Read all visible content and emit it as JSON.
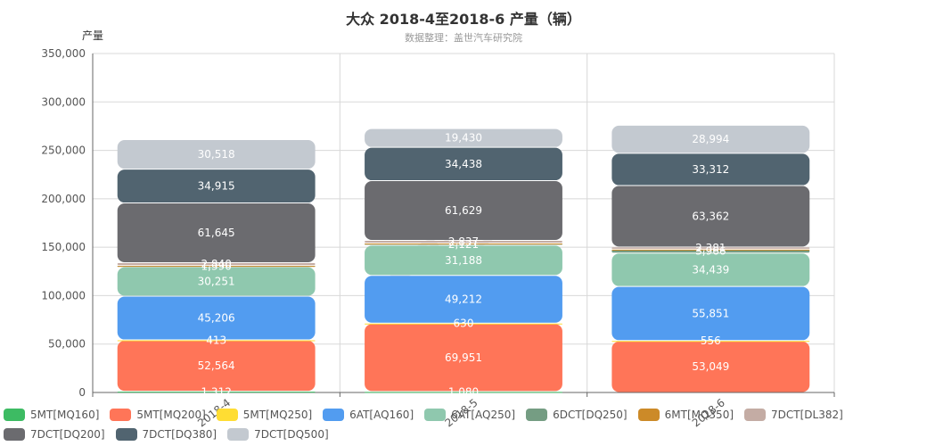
{
  "chart_data": {
    "type": "bar",
    "stacked": true,
    "title": "大众 2018-4至2018-6 产量（辆）",
    "subtitle": "数据整理：盖世汽车研究院",
    "ylabel": "产量",
    "ylim": [
      0,
      350000
    ],
    "yticks": [
      "0",
      "50,000",
      "100,000",
      "150,000",
      "200,000",
      "250,000",
      "300,000",
      "350,000"
    ],
    "categories": [
      "2018-4",
      "2018-5",
      "2018-6"
    ],
    "legend_position": "bottom",
    "series": [
      {
        "name": "5MT[MQ160]",
        "color": "#3dbb63",
        "values": [
          1312,
          1080,
          0
        ],
        "labels": [
          "1,312",
          "1,080",
          ""
        ]
      },
      {
        "name": "5MT[MQ200]",
        "color": "#ff7558",
        "values": [
          52564,
          69951,
          53049
        ],
        "labels": [
          "52,564",
          "69,951",
          "53,049"
        ]
      },
      {
        "name": "5MT[MQ250]",
        "color": "#ffdd33",
        "values": [
          413,
          630,
          556
        ],
        "labels": [
          "413",
          "630",
          "556"
        ]
      },
      {
        "name": "6AT[AQ160]",
        "color": "#529cf0",
        "values": [
          45206,
          49212,
          55851
        ],
        "labels": [
          "45,206",
          "49,212",
          "55,851"
        ]
      },
      {
        "name": "6AT[AQ250]",
        "color": "#8fc8ae",
        "values": [
          30251,
          31188,
          34439
        ],
        "labels": [
          "30,251",
          "31,188",
          "34,439"
        ]
      },
      {
        "name": "6DCT[DQ250]",
        "color": "#759d83",
        "values": [
          1390,
          2121,
          3966
        ],
        "labels": [
          "1,390",
          "2,121",
          "3,966"
        ]
      },
      {
        "name": "6MT[MQ350]",
        "color": "#cc8a28",
        "values": [
          50,
          50,
          50
        ],
        "labels": [
          "",
          "",
          ""
        ]
      },
      {
        "name": "7DCT[DL382]",
        "color": "#c4aca4",
        "values": [
          2840,
          2837,
          2381
        ],
        "labels": [
          "2,840",
          "2,837",
          "2,381"
        ]
      },
      {
        "name": "7DCT[DQ200]",
        "color": "#6b6b6f",
        "values": [
          61645,
          61629,
          63362
        ],
        "labels": [
          "61,645",
          "61,629",
          "63,362"
        ]
      },
      {
        "name": "7DCT[DQ380]",
        "color": "#516470",
        "values": [
          34915,
          34438,
          33312
        ],
        "labels": [
          "34,915",
          "34,438",
          "33,312"
        ]
      },
      {
        "name": "7DCT[DQ500]",
        "color": "#c3c9d0",
        "values": [
          30518,
          19430,
          28994
        ],
        "labels": [
          "30,518",
          "19,430",
          "28,994"
        ]
      }
    ]
  }
}
